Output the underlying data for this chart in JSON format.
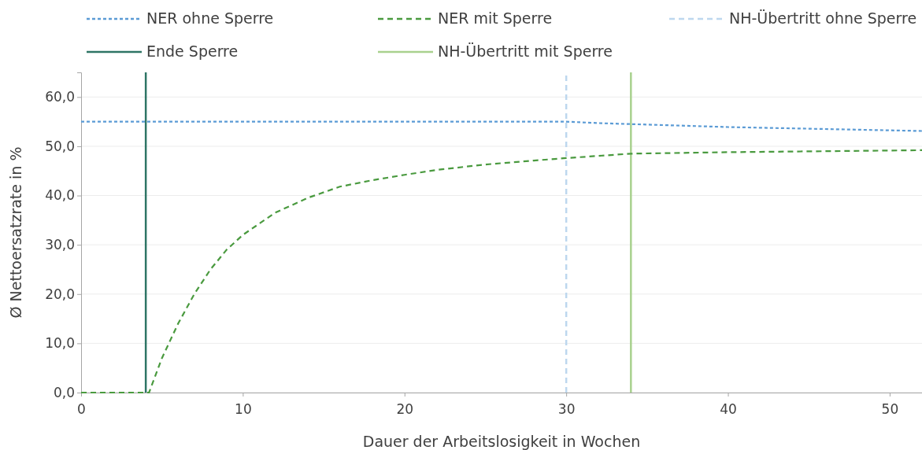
{
  "chart_data": {
    "type": "line",
    "xlabel": "Dauer der Arbeitslosigkeit in Wochen",
    "ylabel": "Ø Nettoersatzrate in %",
    "xlim": [
      0,
      52
    ],
    "ylim": [
      0,
      65
    ],
    "xticks": [
      0,
      10,
      20,
      30,
      40,
      50
    ],
    "yticks": [
      {
        "value": 0,
        "label": "0,0"
      },
      {
        "value": 10,
        "label": "10,0"
      },
      {
        "value": 20,
        "label": "20,0"
      },
      {
        "value": 30,
        "label": "30,0"
      },
      {
        "value": 40,
        "label": "40,0"
      },
      {
        "value": 50,
        "label": "50,0"
      },
      {
        "value": 60,
        "label": "60,0"
      }
    ],
    "grid": "y",
    "legend": "top",
    "marker": "none",
    "series": [
      {
        "name": "NER ohne Sperre",
        "color": "#5b9bd5",
        "line_style": "dotted",
        "x": [
          0,
          10,
          20,
          30,
          32,
          34,
          40,
          46,
          52
        ],
        "values": [
          55,
          55,
          55,
          55,
          54.7,
          54.5,
          53.9,
          53.5,
          53.1
        ]
      },
      {
        "name": "NER mit Sperre",
        "color": "#4a9a3f",
        "line_style": "dashed",
        "x": [
          0,
          4,
          4.2,
          5,
          6,
          7,
          8,
          9,
          10,
          12,
          14,
          16,
          18,
          20,
          22,
          25,
          28,
          30,
          34,
          40,
          46,
          52
        ],
        "values": [
          0,
          0,
          0,
          7,
          14,
          20,
          25,
          29,
          32,
          36.5,
          39.5,
          41.8,
          43.1,
          44.2,
          45.2,
          46.3,
          47.1,
          47.6,
          48.5,
          48.8,
          49,
          49.2
        ]
      }
    ],
    "ref_lines": [
      {
        "axis": "x",
        "value": 30,
        "label": "NH-Übertritt ohne Sperre",
        "color": "#bdd7ee",
        "line_style": "dashed"
      },
      {
        "axis": "x",
        "value": 4,
        "label": "Ende Sperre",
        "color": "#2e7565",
        "line_style": "solid"
      },
      {
        "axis": "x",
        "value": 34,
        "label": "NH-Übertritt mit Sperre",
        "color": "#a9d18e",
        "line_style": "solid"
      }
    ]
  }
}
